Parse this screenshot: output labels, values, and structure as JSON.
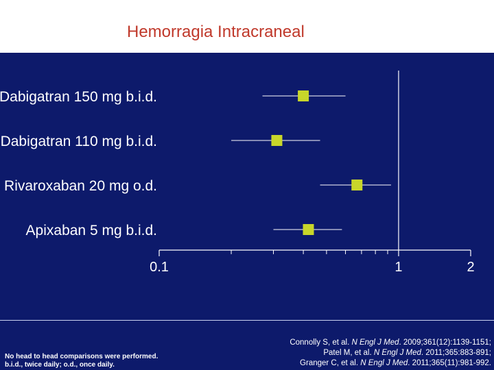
{
  "slide": {
    "title": "Hemorragia Intracraneal",
    "footnote_lines": [
      "No head to head comparisons were performed.",
      "b.i.d., twice daily; o.d., once daily."
    ],
    "references": [
      {
        "pre": "Connolly S, et al. ",
        "journal": "N Engl J Med",
        "post": ". 2009;361(12):1139-1151;"
      },
      {
        "pre": "Patel M, et al. ",
        "journal": "N Engl J Med",
        "post": ". 2011;365:883-891;"
      },
      {
        "pre": "Granger C, et al. ",
        "journal": "N Engl J Med",
        "post": ". 2011;365(11):981-992."
      }
    ]
  },
  "colors": {
    "background": "#0d1a6b",
    "title": "#c0392b",
    "marker": "#c8d62a",
    "text": "#ffffff"
  },
  "chart_data": {
    "type": "forest",
    "scale": "log",
    "xlim": [
      0.1,
      2
    ],
    "xticks_major": [
      0.1,
      1,
      2
    ],
    "xtick_labels": [
      "0.1",
      "1",
      "2"
    ],
    "xticks_minor": [
      0.2,
      0.3,
      0.4,
      0.5,
      0.6,
      0.7,
      0.8,
      0.9
    ],
    "reference_line": 1,
    "rows": [
      {
        "label": "Dabigatran 150 mg b.i.d.",
        "estimate": 0.4,
        "low": 0.27,
        "high": 0.6
      },
      {
        "label": "Dabigatran 110 mg b.i.d.",
        "estimate": 0.31,
        "low": 0.2,
        "high": 0.47
      },
      {
        "label": "Rivaroxaban 20 mg o.d.",
        "estimate": 0.67,
        "low": 0.47,
        "high": 0.93
      },
      {
        "label": "Apixaban  5 mg b.i.d.",
        "estimate": 0.42,
        "low": 0.3,
        "high": 0.58
      }
    ]
  }
}
